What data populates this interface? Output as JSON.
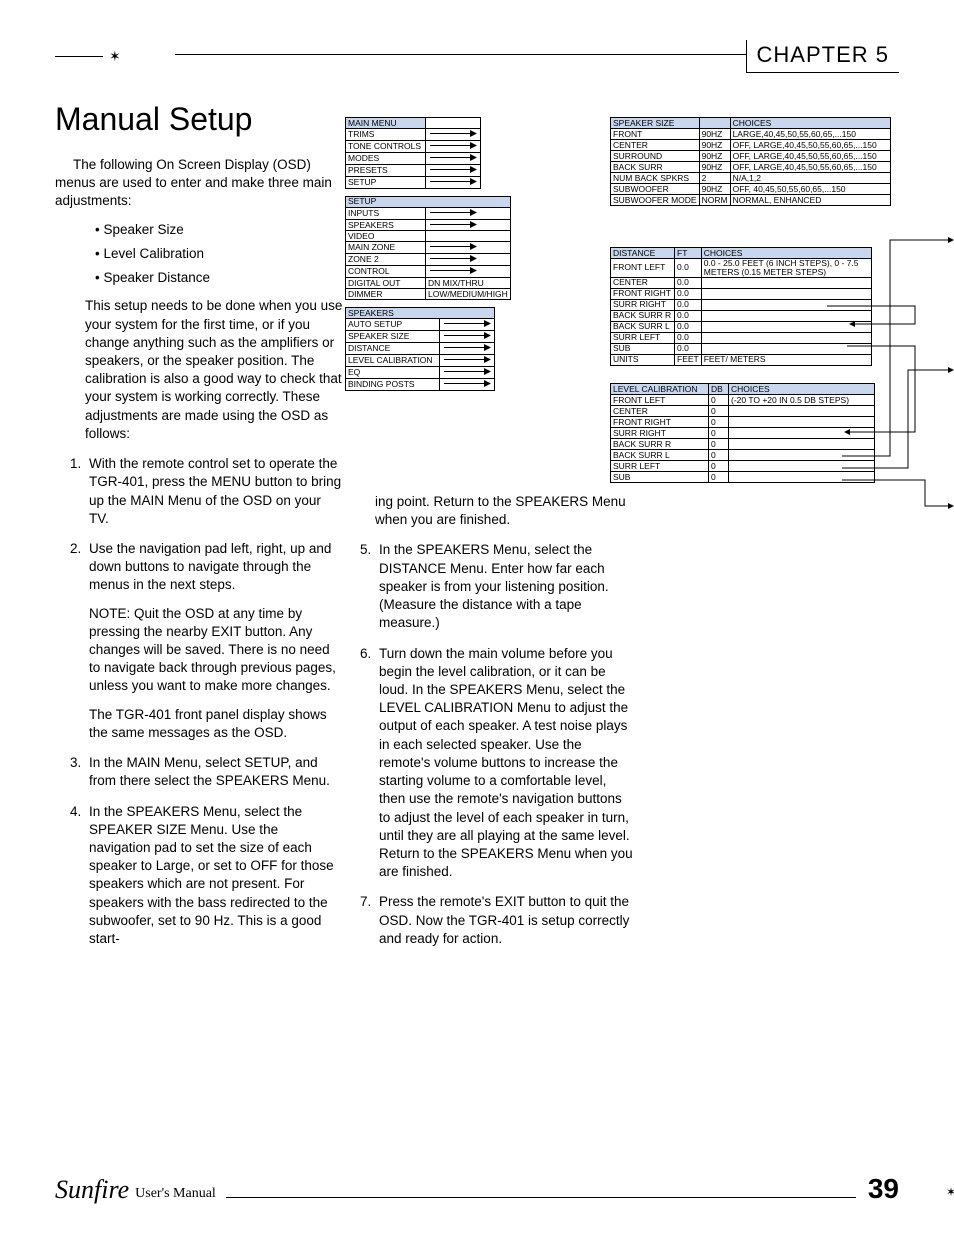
{
  "chapter": "CHAPTER 5",
  "title": "Manual Setup",
  "intro": "The following On Screen Display (OSD) menus are used to enter and make three main adjustments:",
  "bullets": [
    "Speaker Size",
    "Level Calibration",
    "Speaker Distance"
  ],
  "body1": "This setup needs to be done when you use your system for the first time, or if you change anything such as the amplifiers or speakers, or the speaker position. The calibration is also a good way to check that your system is working correctly. These adjustments are made using the OSD as follows:",
  "steps_col1": [
    {
      "n": "1",
      "text": "With the remote control set to operate the TGR-401, press the MENU button to bring up the MAIN Menu of the OSD on your TV."
    },
    {
      "n": "2",
      "text": "Use the navigation pad left, right, up and down buttons to navigate through the menus in the next steps.",
      "extra": [
        "NOTE: Quit the OSD at any time by pressing the nearby EXIT button. Any changes will be saved. There is no need to navigate back through previous pages, unless you want to make more changes.",
        "The TGR-401 front panel display shows the same messages as the OSD."
      ]
    },
    {
      "n": "3",
      "text": "In the MAIN Menu, select SETUP, and from there select the SPEAKERS Menu."
    },
    {
      "n": "4",
      "text": "In the SPEAKERS Menu, select the SPEAKER SIZE Menu. Use the navigation pad to set the size of each speaker to Large, or set to OFF for those speakers which are not present. For speakers with the bass redirected to the subwoofer, set to 90 Hz. This is a good start-"
    }
  ],
  "cont4": "ing point. Return to the SPEAKERS Menu when you are finished.",
  "steps_col2": [
    {
      "n": "5",
      "text": "In the SPEAKERS Menu, select the DISTANCE Menu. Enter how far each speaker is from your listening position. (Measure the distance with a tape measure.)"
    },
    {
      "n": "6",
      "text": "Turn down the main volume before you begin the level calibration, or it can be loud. In the SPEAKERS Menu, select the LEVEL CALIBRATION Menu to adjust the output of each speaker. A test noise plays in each selected speaker. Use the remote's volume buttons to increase the starting volume to a comfortable level, then use the remote's navigation buttons to adjust the level of each speaker in turn, until they are all playing at the same level. Return to the SPEAKERS Menu when you are finished."
    },
    {
      "n": "7",
      "text": "Press the remote's EXIT button to quit the OSD. Now the TGR-401 is setup correctly and ready for action."
    }
  ],
  "menus": {
    "main_menu_hdr": "MAIN MENU",
    "main_menu": [
      "TRIMS",
      "TONE CONTROLS",
      "MODES",
      "PRESETS",
      "SETUP"
    ],
    "setup_hdr": "SETUP",
    "setup": [
      {
        "name": "INPUTS",
        "arrow": true
      },
      {
        "name": "SPEAKERS",
        "arrow": true
      },
      {
        "name": "VIDEO",
        "arrow": false
      },
      {
        "name": "MAIN ZONE",
        "arrow": true
      },
      {
        "name": "ZONE 2",
        "arrow": true
      },
      {
        "name": "CONTROL",
        "arrow": true
      },
      {
        "name": "DIGITAL OUT",
        "text": "DN MIX/THRU"
      },
      {
        "name": "DIMMER",
        "text": "LOW/MEDIUM/HIGH"
      }
    ],
    "speakers_hdr": "SPEAKERS",
    "speakers": [
      "AUTO SETUP",
      "SPEAKER SIZE",
      "DISTANCE",
      "LEVEL CALIBRATION",
      "EQ",
      "BINDING POSTS"
    ]
  },
  "speaker_size": {
    "hdr": [
      "SPEAKER SIZE",
      "",
      "CHOICES"
    ],
    "rows": [
      [
        "FRONT",
        "90HZ",
        "LARGE,40,45,50,55,60,65,...150"
      ],
      [
        "CENTER",
        "90HZ",
        "OFF, LARGE,40,45,50,55,60,65,...150"
      ],
      [
        "SURROUND",
        "90HZ",
        "OFF, LARGE,40,45,50,55,60,65,...150"
      ],
      [
        "BACK SURR",
        "90HZ",
        "OFF, LARGE,40,45,50,55,60,65,...150"
      ],
      [
        "NUM BACK SPKRS",
        "2",
        "N/A,1,2"
      ],
      [
        "SUBWOOFER",
        "90HZ",
        "OFF, 40,45,50,55,60,65,...150"
      ],
      [
        "SUBWOOFER MODE",
        "NORM",
        "NORMAL, ENHANCED"
      ]
    ]
  },
  "distance": {
    "hdr": [
      "DISTANCE",
      "FT",
      "CHOICES"
    ],
    "rows": [
      [
        "FRONT LEFT",
        "0.0",
        "0.0 - 25.0 FEET (6 INCH STEPS), 0 - 7.5 METERS (0.15 METER STEPS)"
      ],
      [
        "CENTER",
        "0.0",
        ""
      ],
      [
        "FRONT RIGHT",
        "0.0",
        ""
      ],
      [
        "SURR RIGHT",
        "0.0",
        ""
      ],
      [
        "BACK SURR R",
        "0.0",
        ""
      ],
      [
        "BACK SURR L",
        "0.0",
        ""
      ],
      [
        "SURR LEFT",
        "0.0",
        ""
      ],
      [
        "SUB",
        "0.0",
        ""
      ],
      [
        "UNITS",
        "FEET",
        "FEET/ METERS"
      ]
    ]
  },
  "level_cal": {
    "hdr": [
      "LEVEL CALIBRATION",
      "DB",
      "CHOICES"
    ],
    "rows": [
      [
        "FRONT LEFT",
        "0",
        "(-20 TO +20 IN 0.5 DB STEPS)"
      ],
      [
        "CENTER",
        "0",
        ""
      ],
      [
        "FRONT RIGHT",
        "0",
        ""
      ],
      [
        "SURR RIGHT",
        "0",
        ""
      ],
      [
        "BACK SURR R",
        "0",
        ""
      ],
      [
        "BACK SURR L",
        "0",
        ""
      ],
      [
        "SURR LEFT",
        "0",
        ""
      ],
      [
        "SUB",
        "0",
        ""
      ]
    ]
  },
  "footer": {
    "brand": "Sunfire",
    "um": "User's Manual",
    "page": "39"
  },
  "colors": {
    "hdr_bg": "#c9d7ee"
  }
}
